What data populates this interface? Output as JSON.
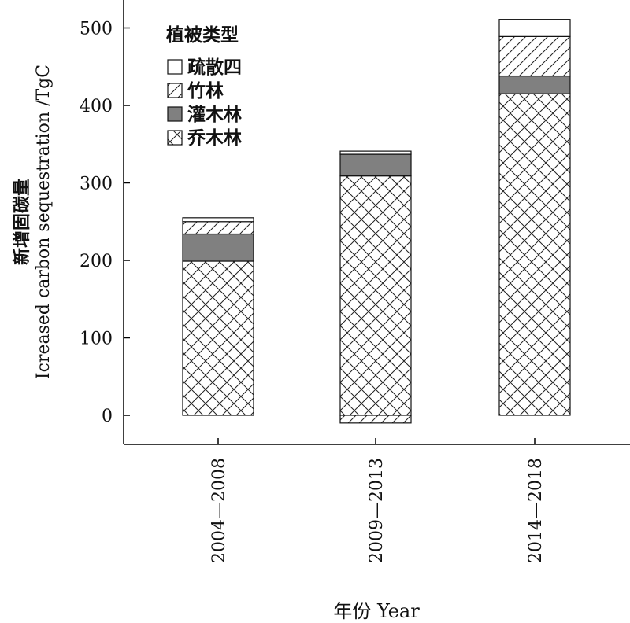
{
  "chart_data": {
    "type": "bar",
    "stacked": true,
    "categories": [
      "2004—2008",
      "2009—2013",
      "2014—2018"
    ],
    "series": [
      {
        "name": "乔木林",
        "pattern": "crosshatch",
        "values": [
          199,
          309,
          415
        ]
      },
      {
        "name": "灌木林",
        "pattern": "solid-gray",
        "color": "#808080",
        "values": [
          35,
          28,
          23
        ]
      },
      {
        "name": "竹林",
        "pattern": "diagonal",
        "values": [
          16,
          -10,
          51
        ]
      },
      {
        "name": "疏散四",
        "pattern": "white",
        "values": [
          5,
          4,
          22
        ]
      }
    ],
    "legend_title": "植被类型",
    "legend_order": [
      "疏散四",
      "竹林",
      "灌木林",
      "乔木林"
    ],
    "xlabel": "年份 Year",
    "ylabel_cn": "新增固碳量",
    "ylabel_en": "Icreased carbon sequestration /TgC",
    "ylim": [
      -12,
      540
    ],
    "yticks": [
      0,
      100,
      200,
      300,
      400,
      500
    ],
    "legend_position": "top-left",
    "grid": false
  }
}
